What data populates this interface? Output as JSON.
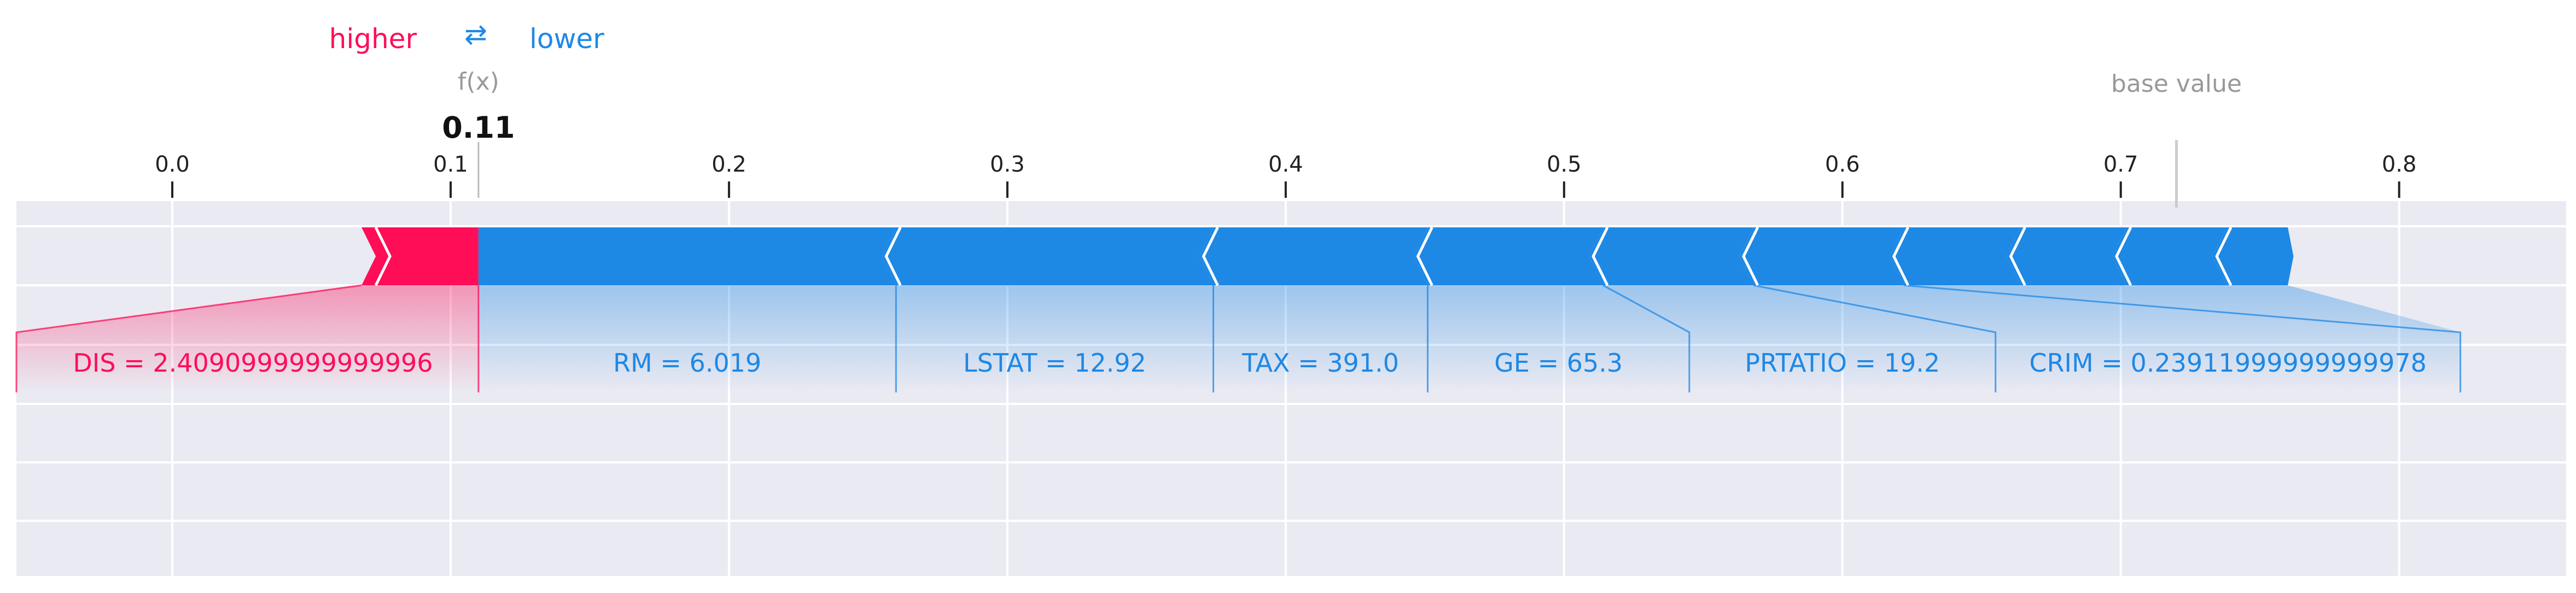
{
  "legend": {
    "higher_label": "higher",
    "arrow_symbol": "⇄",
    "lower_label": "lower",
    "higher_color": "#ff0d57",
    "lower_color": "#1e88e5"
  },
  "chart_data": {
    "type": "force",
    "title": "",
    "xlabel": "",
    "ylabel": "",
    "xlim": [
      -0.056,
      0.86
    ],
    "ticks": [
      0.0,
      0.1,
      0.2,
      0.3,
      0.4,
      0.5,
      0.6,
      0.7,
      0.8
    ],
    "tick_labels": [
      "0.0",
      "0.1",
      "0.2",
      "0.3",
      "0.4",
      "0.5",
      "0.6",
      "0.7",
      "0.8"
    ],
    "grid": true,
    "output_caption": "f(x)",
    "output_value": 0.11,
    "output_value_label": "0.11",
    "base_caption": "base value",
    "base_value": 0.72,
    "segments": [
      {
        "feature": "DIS",
        "label": "DIS = 2.4090999999999996",
        "direction": "higher",
        "start": 0.068,
        "end": 0.11
      },
      {
        "feature": "RM",
        "label": "RM = 6.019",
        "direction": "lower",
        "start": 0.11,
        "end": 0.26
      },
      {
        "feature": "LSTAT",
        "label": "LSTAT = 12.92",
        "direction": "lower",
        "start": 0.26,
        "end": 0.374
      },
      {
        "feature": "TAX",
        "label": "TAX = 391.0",
        "direction": "lower",
        "start": 0.374,
        "end": 0.451
      },
      {
        "feature": "GE",
        "label": "GE = 65.3",
        "direction": "lower",
        "start": 0.451,
        "end": 0.514
      },
      {
        "feature": "PRTATIO",
        "label": "PRTATIO = 19.2",
        "direction": "lower",
        "start": 0.514,
        "end": 0.568
      },
      {
        "feature": "CRIM",
        "label": "CRIM = 0.23911999999999978",
        "direction": "lower",
        "start": 0.568,
        "end": 0.622
      },
      {
        "feature": "",
        "label": "",
        "direction": "lower",
        "start": 0.622,
        "end": 0.664
      },
      {
        "feature": "",
        "label": "",
        "direction": "lower",
        "start": 0.664,
        "end": 0.702
      },
      {
        "feature": "",
        "label": "",
        "direction": "lower",
        "start": 0.702,
        "end": 0.738
      },
      {
        "feature": "",
        "label": "",
        "direction": "lower",
        "start": 0.738,
        "end": 0.76
      }
    ]
  }
}
